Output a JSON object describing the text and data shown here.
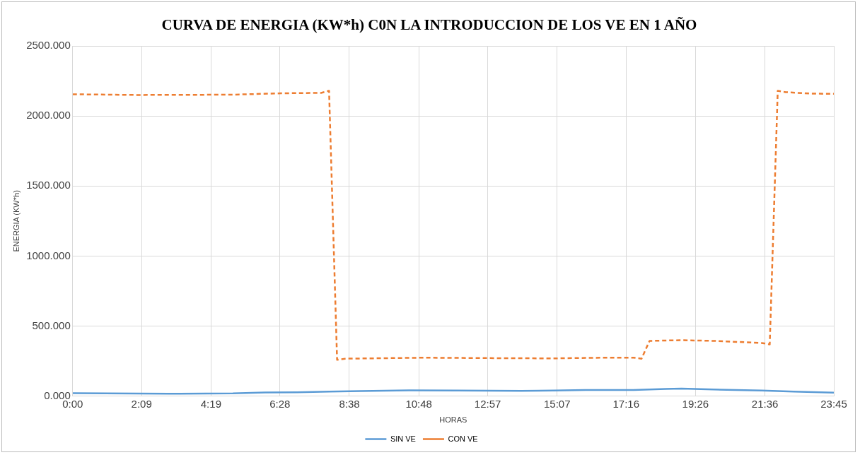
{
  "chart_data": {
    "type": "line",
    "title": "CURVA DE ENERGIA (KW*h) C0N LA INTRODUCCION DE LOS VE EN 1 AÑO",
    "xlabel": "HORAS",
    "ylabel": "ENERGIA (KW*h)",
    "xlim": [
      0,
      23.75
    ],
    "xticks": [
      {
        "value": 0,
        "label": "0:00"
      },
      {
        "value": 2.15,
        "label": "2:09"
      },
      {
        "value": 4.3167,
        "label": "4:19"
      },
      {
        "value": 6.4667,
        "label": "6:28"
      },
      {
        "value": 8.6333,
        "label": "8:38"
      },
      {
        "value": 10.8,
        "label": "10:48"
      },
      {
        "value": 12.95,
        "label": "12:57"
      },
      {
        "value": 15.1167,
        "label": "15:07"
      },
      {
        "value": 17.2667,
        "label": "17:16"
      },
      {
        "value": 19.4333,
        "label": "19:26"
      },
      {
        "value": 21.6,
        "label": "21:36"
      },
      {
        "value": 23.75,
        "label": "23:45"
      }
    ],
    "ylim": [
      0,
      2500
    ],
    "yticks": [
      {
        "value": 0,
        "label": "0.000"
      },
      {
        "value": 500,
        "label": "500.000"
      },
      {
        "value": 1000,
        "label": "1000.000"
      },
      {
        "value": 1500,
        "label": "1500.000"
      },
      {
        "value": 2000,
        "label": "2000.000"
      },
      {
        "value": 2500,
        "label": "2500.000"
      }
    ],
    "grid": true,
    "legend": "bottom",
    "marker": "none",
    "series": [
      {
        "name": "SIN VE",
        "color": "#5b9bd5",
        "line_style": "solid",
        "x": [
          0,
          1,
          3,
          5,
          6,
          7,
          8,
          9,
          10.5,
          12,
          14,
          15,
          16,
          17.5,
          18.5,
          19,
          20,
          21.5,
          22.5,
          23.75
        ],
        "values": [
          22,
          20,
          18,
          20,
          27,
          28,
          33,
          37,
          42,
          40,
          38,
          40,
          44,
          44,
          52,
          55,
          48,
          40,
          33,
          25
        ]
      },
      {
        "name": "CON VE",
        "color": "#ed7d31",
        "line_style": "dashed",
        "x": [
          0,
          2,
          5,
          6.5,
          7.75,
          8,
          8.25,
          8.5,
          11,
          13,
          15,
          16.5,
          17.5,
          17.75,
          18,
          19,
          20,
          21,
          21.5,
          21.75,
          22,
          22.25,
          23,
          23.75
        ],
        "values": [
          2155,
          2150,
          2152,
          2162,
          2165,
          2180,
          260,
          268,
          275,
          272,
          270,
          275,
          275,
          268,
          395,
          400,
          395,
          385,
          380,
          370,
          2180,
          2170,
          2160,
          2158
        ]
      }
    ]
  }
}
